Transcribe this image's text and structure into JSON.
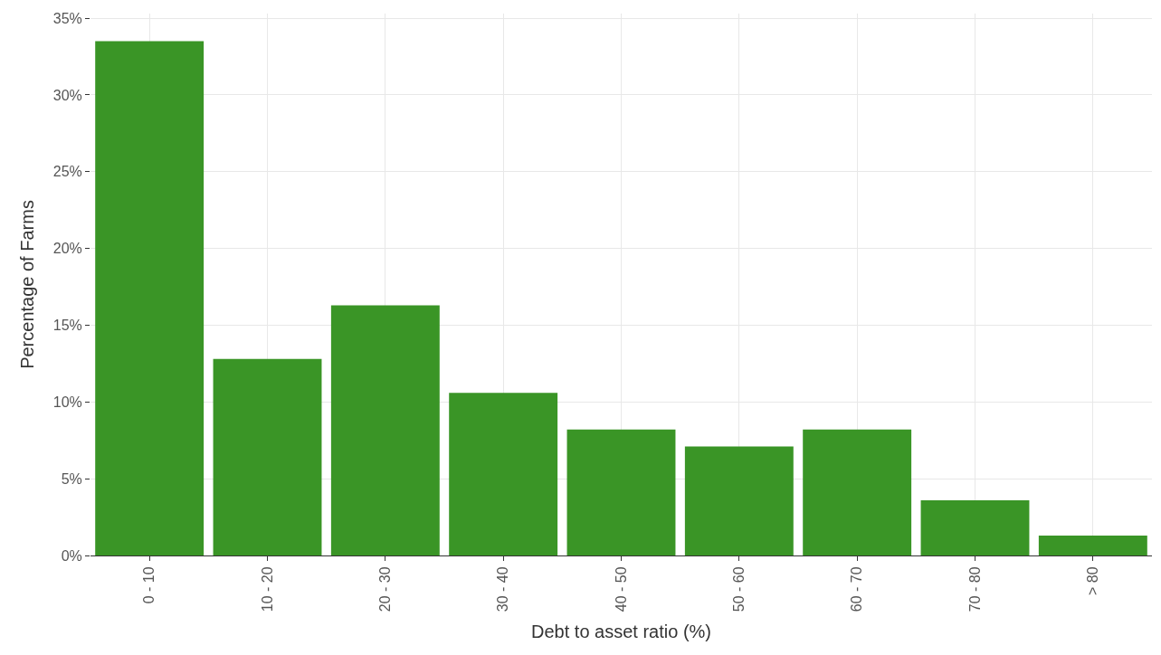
{
  "chart_data": {
    "type": "bar",
    "xlabel": "Debt to asset ratio (%)",
    "ylabel": "Percentage of Farms",
    "categories": [
      "0 - 10",
      "10 - 20",
      "20 - 30",
      "30 - 40",
      "40 - 50",
      "50 - 60",
      "60 - 70",
      "70 - 80",
      "> 80"
    ],
    "values": [
      33.5,
      12.8,
      16.3,
      10.6,
      8.2,
      7.1,
      8.2,
      3.6,
      1.3
    ],
    "color": "#3a9526",
    "ylim": [
      0,
      35.3
    ],
    "yticks": [
      {
        "value": 0,
        "label": "0%"
      },
      {
        "value": 5,
        "label": "5%"
      },
      {
        "value": 10,
        "label": "10%"
      },
      {
        "value": 15,
        "label": "15%"
      },
      {
        "value": 20,
        "label": "20%"
      },
      {
        "value": 25,
        "label": "25%"
      },
      {
        "value": 30,
        "label": "30%"
      },
      {
        "value": 35,
        "label": "35%"
      }
    ],
    "grid": true
  }
}
